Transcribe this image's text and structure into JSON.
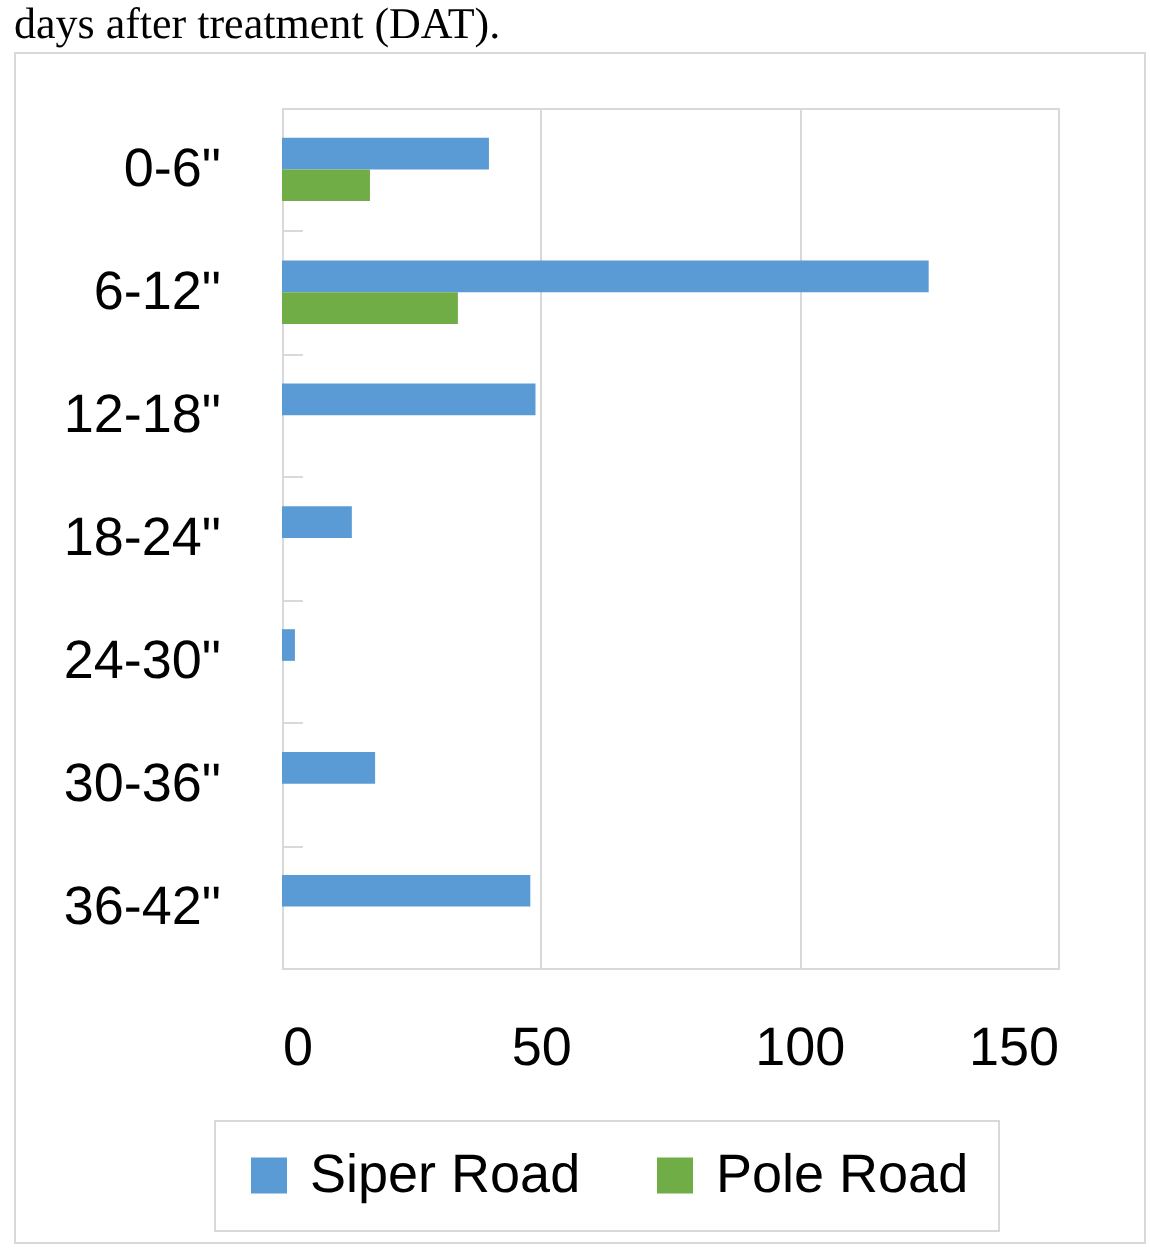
{
  "chart_data": {
    "type": "bar",
    "orientation": "horizontal",
    "annotations": [
      "days after treatment (DAT)."
    ],
    "categories": [
      "0-6\"",
      "6-12\"",
      "12-18\"",
      "18-24\"",
      "24-30\"",
      "30-36\"",
      "36-42\""
    ],
    "series": [
      {
        "name": "Siper Road",
        "color": "#5b9bd5",
        "values": [
          40,
          125,
          49,
          13.5,
          2.5,
          18,
          48
        ]
      },
      {
        "name": "Pole Road",
        "color": "#70ad47",
        "values": [
          17,
          34,
          null,
          null,
          null,
          null,
          null
        ]
      }
    ],
    "xlim": [
      0,
      150
    ],
    "xticks": [
      0,
      50,
      100,
      150
    ],
    "grid": "x",
    "legend": "bottom"
  }
}
